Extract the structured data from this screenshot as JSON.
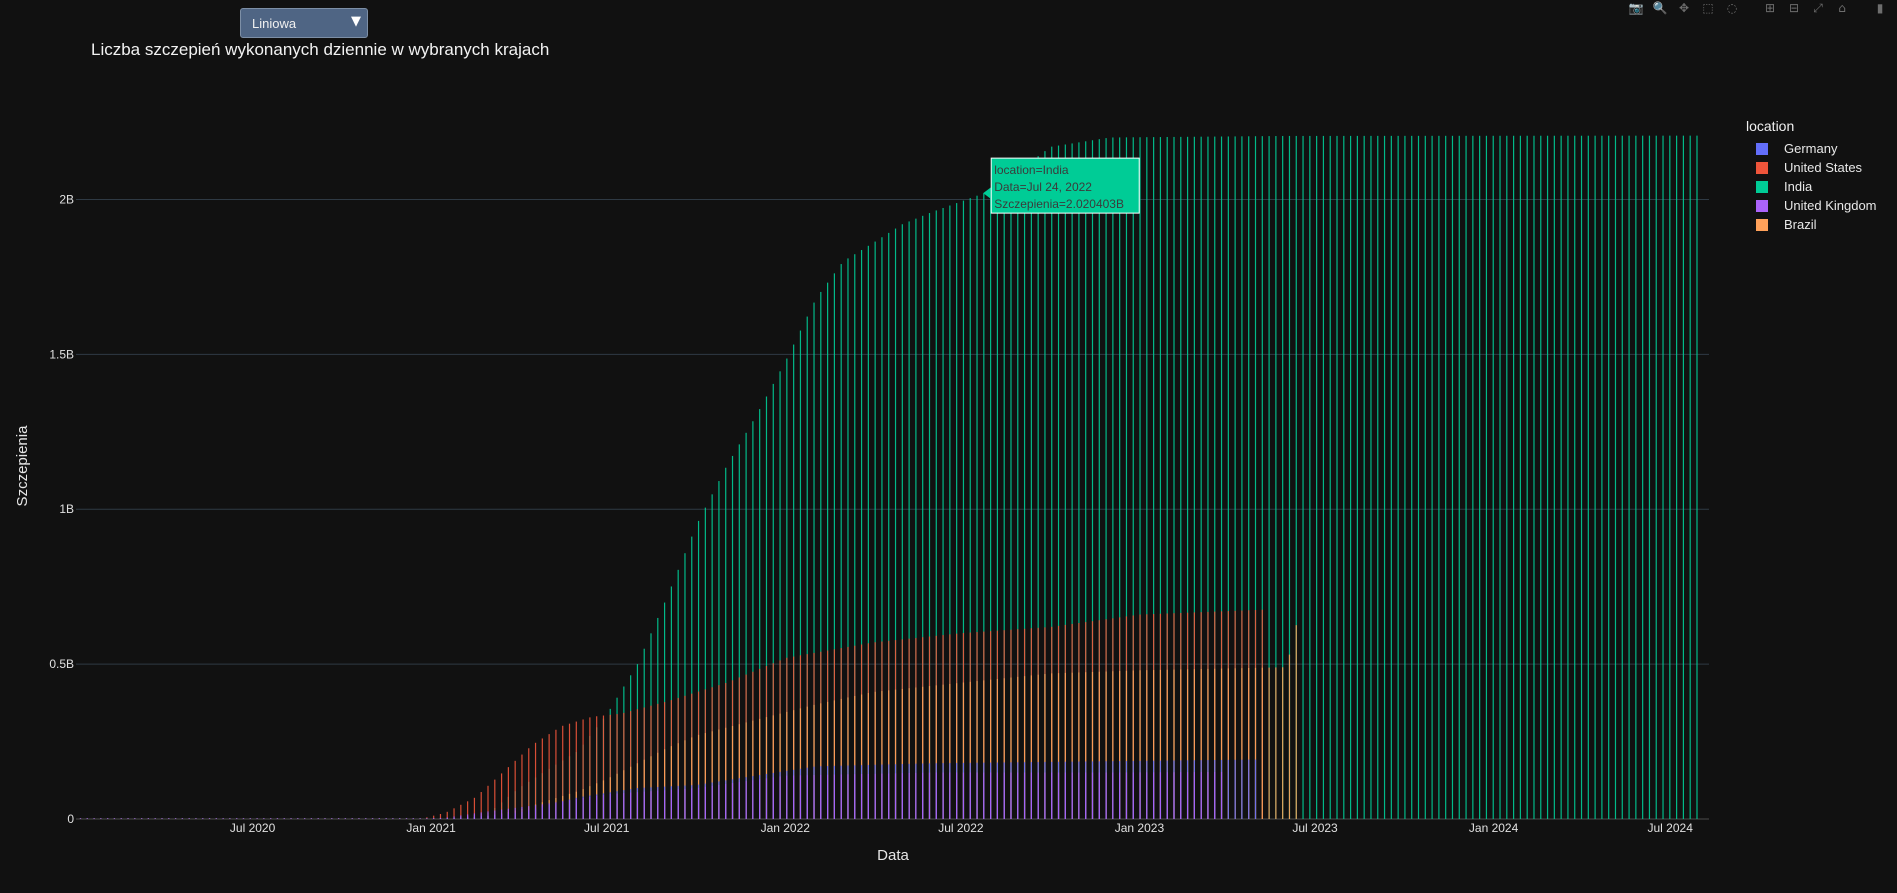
{
  "dropdown": {
    "label": "Liniowa",
    "arrow": "▼"
  },
  "modebar": [
    {
      "name": "camera-icon",
      "glyph": "📷",
      "group": 1
    },
    {
      "name": "zoom-icon",
      "glyph": "🔍",
      "group": 1,
      "active": true
    },
    {
      "name": "pan-icon",
      "glyph": "✥",
      "group": 1
    },
    {
      "name": "box-select-icon",
      "glyph": "⬚",
      "group": 1
    },
    {
      "name": "lasso-select-icon",
      "glyph": "◌",
      "group": 1
    },
    {
      "name": "zoom-in-icon",
      "glyph": "⊞",
      "group": 2
    },
    {
      "name": "zoom-out-icon",
      "glyph": "⊟",
      "group": 2
    },
    {
      "name": "autoscale-icon",
      "glyph": "⤢",
      "group": 2
    },
    {
      "name": "reset-axes-icon",
      "glyph": "⌂",
      "group": 2
    },
    {
      "name": "plotly-logo-icon",
      "glyph": "▮",
      "group": 3
    }
  ],
  "legend": {
    "title": "location",
    "items": [
      {
        "name": "Germany",
        "color": "#636efa"
      },
      {
        "name": "United States",
        "color": "#ef553b"
      },
      {
        "name": "India",
        "color": "#00cc96"
      },
      {
        "name": "United Kingdom",
        "color": "#ab63fa"
      },
      {
        "name": "Brazil",
        "color": "#ffa15a"
      }
    ]
  },
  "tooltip": {
    "line1": "location=India",
    "line2": "Data=Jul 24, 2022",
    "line3": "Szczepienia=2.020403B",
    "color": "#00cc96"
  },
  "chart_data": {
    "type": "bar",
    "title": "Liczba szczepień wykonanych dziennie w wybranych krajach",
    "xlabel": "Data",
    "ylabel": "Szczepienia",
    "x_range": [
      "2020-01-01",
      "2024-08-10"
    ],
    "ylim": [
      0,
      2.25
    ],
    "y_unit": "B",
    "y_ticks": [
      0,
      0.5,
      1,
      1.5,
      2
    ],
    "y_tick_labels": [
      "0",
      "0.5B",
      "1B",
      "1.5B",
      "2B"
    ],
    "x_ticks": [
      "2020-07-01",
      "2021-01-01",
      "2021-07-01",
      "2022-01-01",
      "2022-07-01",
      "2023-01-01",
      "2023-07-01",
      "2024-01-01",
      "2024-07-01"
    ],
    "x_tick_labels": [
      "Jul 2020",
      "Jan 2021",
      "Jul 2021",
      "Jan 2022",
      "Jul 2022",
      "Jan 2023",
      "Jul 2023",
      "Jan 2024",
      "Jul 2024"
    ],
    "grid": true,
    "legend_placement": "top-right",
    "series": [
      {
        "name": "India",
        "color": "#00cc96",
        "points": [
          [
            "2021-01-16",
            0
          ],
          [
            "2021-03-01",
            0.02
          ],
          [
            "2021-04-01",
            0.1
          ],
          [
            "2021-05-01",
            0.16
          ],
          [
            "2021-06-01",
            0.22
          ],
          [
            "2021-07-01",
            0.34
          ],
          [
            "2021-08-01",
            0.5
          ],
          [
            "2021-09-01",
            0.72
          ],
          [
            "2021-10-01",
            0.95
          ],
          [
            "2021-11-01",
            1.14
          ],
          [
            "2021-12-01",
            1.3
          ],
          [
            "2022-01-01",
            1.48
          ],
          [
            "2022-02-01",
            1.68
          ],
          [
            "2022-03-01",
            1.8
          ],
          [
            "2022-04-01",
            1.86
          ],
          [
            "2022-05-01",
            1.92
          ],
          [
            "2022-06-01",
            1.96
          ],
          [
            "2022-07-24",
            2.02
          ],
          [
            "2022-09-01",
            2.1
          ],
          [
            "2022-10-01",
            2.17
          ],
          [
            "2022-12-01",
            2.2
          ],
          [
            "2023-06-01",
            2.205
          ],
          [
            "2024-08-01",
            2.206
          ]
        ],
        "end": "2024-08-01"
      },
      {
        "name": "United States",
        "color": "#ef553b",
        "points": [
          [
            "2020-12-20",
            0
          ],
          [
            "2021-01-15",
            0.02
          ],
          [
            "2021-02-15",
            0.07
          ],
          [
            "2021-03-15",
            0.15
          ],
          [
            "2021-04-15",
            0.24
          ],
          [
            "2021-05-15",
            0.3
          ],
          [
            "2021-06-15",
            0.33
          ],
          [
            "2021-07-15",
            0.34
          ],
          [
            "2021-09-01",
            0.38
          ],
          [
            "2021-11-01",
            0.44
          ],
          [
            "2022-01-01",
            0.52
          ],
          [
            "2022-04-01",
            0.57
          ],
          [
            "2022-07-01",
            0.6
          ],
          [
            "2022-10-01",
            0.62
          ],
          [
            "2023-01-01",
            0.66
          ],
          [
            "2023-05-10",
            0.676
          ]
        ],
        "end": "2023-05-10"
      },
      {
        "name": "Brazil",
        "color": "#ffa15a",
        "points": [
          [
            "2021-01-18",
            0
          ],
          [
            "2021-03-01",
            0.01
          ],
          [
            "2021-04-01",
            0.03
          ],
          [
            "2021-05-01",
            0.06
          ],
          [
            "2021-06-01",
            0.09
          ],
          [
            "2021-07-01",
            0.13
          ],
          [
            "2021-08-01",
            0.18
          ],
          [
            "2021-09-01",
            0.23
          ],
          [
            "2021-10-01",
            0.27
          ],
          [
            "2021-12-01",
            0.32
          ],
          [
            "2022-02-01",
            0.37
          ],
          [
            "2022-04-01",
            0.41
          ],
          [
            "2022-07-01",
            0.44
          ],
          [
            "2022-10-01",
            0.47
          ],
          [
            "2023-01-01",
            0.48
          ],
          [
            "2023-06-01",
            0.49
          ],
          [
            "2023-06-15",
            0.68
          ]
        ],
        "end": "2023-06-15"
      },
      {
        "name": "Germany",
        "color": "#636efa",
        "points": [
          [
            "2020-12-27",
            0
          ],
          [
            "2021-02-01",
            0.004
          ],
          [
            "2021-04-01",
            0.02
          ],
          [
            "2021-06-01",
            0.07
          ],
          [
            "2021-08-01",
            0.1
          ],
          [
            "2021-10-01",
            0.11
          ],
          [
            "2021-12-01",
            0.14
          ],
          [
            "2022-02-01",
            0.17
          ],
          [
            "2022-06-01",
            0.18
          ],
          [
            "2023-05-01",
            0.192
          ]
        ],
        "end": "2023-05-01"
      },
      {
        "name": "United Kingdom",
        "color": "#ab63fa",
        "points": [
          [
            "2020-12-08",
            0
          ],
          [
            "2021-01-15",
            0.004
          ],
          [
            "2021-03-01",
            0.025
          ],
          [
            "2021-05-01",
            0.05
          ],
          [
            "2021-07-01",
            0.08
          ],
          [
            "2021-10-01",
            0.1
          ],
          [
            "2022-01-01",
            0.14
          ],
          [
            "2022-06-01",
            0.15
          ],
          [
            "2022-12-01",
            0.15
          ],
          [
            "2023-04-01",
            0.152
          ]
        ],
        "end": "2023-04-01"
      }
    ]
  }
}
